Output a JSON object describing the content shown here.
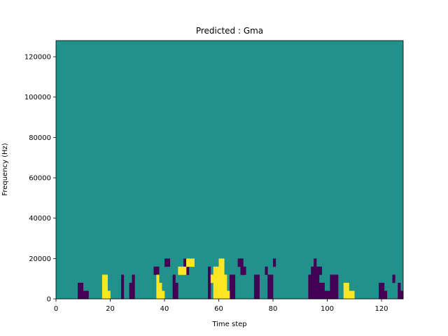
{
  "chart_data": {
    "type": "heatmap",
    "title": "Predicted : Gma",
    "xlabel": "Time step",
    "ylabel": "Frequency (Hz)",
    "xlim": [
      0,
      128
    ],
    "ylim": [
      0,
      128000
    ],
    "xticks": [
      0,
      20,
      40,
      60,
      80,
      100,
      120
    ],
    "yticks": [
      0,
      20000,
      40000,
      60000,
      80000,
      100000,
      120000
    ],
    "xtick_labels": [
      "0",
      "20",
      "40",
      "60",
      "80",
      "100",
      "120"
    ],
    "ytick_labels": [
      "0",
      "20000",
      "40000",
      "60000",
      "80000",
      "100000",
      "120000"
    ],
    "grid": false,
    "colormap": {
      "-1": "#440154",
      "0": "#21918c",
      "1": "#fde725"
    },
    "rows": 32,
    "row_height_hz": 4000,
    "cells_low_purple": [
      [
        0,
        8
      ],
      [
        0,
        9
      ],
      [
        0,
        10
      ],
      [
        0,
        11
      ],
      [
        0,
        24
      ],
      [
        0,
        27
      ],
      [
        0,
        28
      ],
      [
        0,
        43
      ],
      [
        0,
        44
      ],
      [
        0,
        56
      ],
      [
        0,
        64
      ],
      [
        0,
        65
      ],
      [
        0,
        73
      ],
      [
        0,
        74
      ],
      [
        0,
        78
      ],
      [
        0,
        79
      ],
      [
        0,
        93
      ],
      [
        0,
        94
      ],
      [
        0,
        95
      ],
      [
        0,
        96
      ],
      [
        0,
        97
      ],
      [
        0,
        98
      ],
      [
        0,
        99
      ],
      [
        0,
        100
      ],
      [
        0,
        101
      ],
      [
        0,
        102
      ],
      [
        0,
        103
      ],
      [
        0,
        119
      ],
      [
        0,
        120
      ],
      [
        0,
        121
      ],
      [
        0,
        126
      ],
      [
        0,
        127
      ],
      [
        1,
        8
      ],
      [
        1,
        9
      ],
      [
        1,
        24
      ],
      [
        1,
        27
      ],
      [
        1,
        28
      ],
      [
        1,
        43
      ],
      [
        1,
        44
      ],
      [
        1,
        56
      ],
      [
        1,
        64
      ],
      [
        1,
        65
      ],
      [
        1,
        73
      ],
      [
        1,
        74
      ],
      [
        1,
        78
      ],
      [
        1,
        79
      ],
      [
        1,
        93
      ],
      [
        1,
        94
      ],
      [
        1,
        95
      ],
      [
        1,
        96
      ],
      [
        1,
        97
      ],
      [
        1,
        98
      ],
      [
        1,
        101
      ],
      [
        1,
        102
      ],
      [
        1,
        103
      ],
      [
        1,
        119
      ],
      [
        1,
        120
      ],
      [
        1,
        126
      ],
      [
        2,
        24
      ],
      [
        2,
        28
      ],
      [
        2,
        43
      ],
      [
        2,
        56
      ],
      [
        2,
        64
      ],
      [
        2,
        65
      ],
      [
        2,
        73
      ],
      [
        2,
        74
      ],
      [
        2,
        78
      ],
      [
        2,
        79
      ],
      [
        2,
        93
      ],
      [
        2,
        94
      ],
      [
        2,
        95
      ],
      [
        2,
        96
      ],
      [
        2,
        101
      ],
      [
        2,
        102
      ],
      [
        2,
        103
      ],
      [
        2,
        124
      ],
      [
        3,
        36
      ],
      [
        3,
        37
      ],
      [
        3,
        48
      ],
      [
        3,
        56
      ],
      [
        3,
        68
      ],
      [
        3,
        69
      ],
      [
        3,
        77
      ],
      [
        3,
        94
      ],
      [
        3,
        95
      ],
      [
        3,
        96
      ],
      [
        3,
        97
      ],
      [
        4,
        40
      ],
      [
        4,
        41
      ],
      [
        4,
        47
      ],
      [
        4,
        67
      ],
      [
        4,
        68
      ],
      [
        4,
        80
      ],
      [
        4,
        95
      ]
    ],
    "cells_high_yellow": [
      [
        0,
        17
      ],
      [
        0,
        18
      ],
      [
        0,
        19
      ],
      [
        0,
        37
      ],
      [
        0,
        38
      ],
      [
        0,
        39
      ],
      [
        0,
        58
      ],
      [
        0,
        59
      ],
      [
        0,
        60
      ],
      [
        0,
        61
      ],
      [
        0,
        62
      ],
      [
        0,
        63
      ],
      [
        0,
        106
      ],
      [
        0,
        107
      ],
      [
        0,
        108
      ],
      [
        0,
        109
      ],
      [
        1,
        17
      ],
      [
        1,
        18
      ],
      [
        1,
        37
      ],
      [
        1,
        38
      ],
      [
        1,
        58
      ],
      [
        1,
        59
      ],
      [
        1,
        60
      ],
      [
        1,
        61
      ],
      [
        1,
        62
      ],
      [
        1,
        106
      ],
      [
        1,
        107
      ],
      [
        2,
        17
      ],
      [
        2,
        18
      ],
      [
        2,
        37
      ],
      [
        2,
        57
      ],
      [
        2,
        58
      ],
      [
        2,
        59
      ],
      [
        2,
        60
      ],
      [
        2,
        61
      ],
      [
        2,
        62
      ],
      [
        3,
        45
      ],
      [
        3,
        46
      ],
      [
        3,
        47
      ],
      [
        3,
        58
      ],
      [
        3,
        59
      ],
      [
        3,
        60
      ],
      [
        3,
        61
      ],
      [
        4,
        48
      ],
      [
        4,
        49
      ],
      [
        4,
        50
      ],
      [
        4,
        60
      ],
      [
        4,
        61
      ]
    ]
  }
}
